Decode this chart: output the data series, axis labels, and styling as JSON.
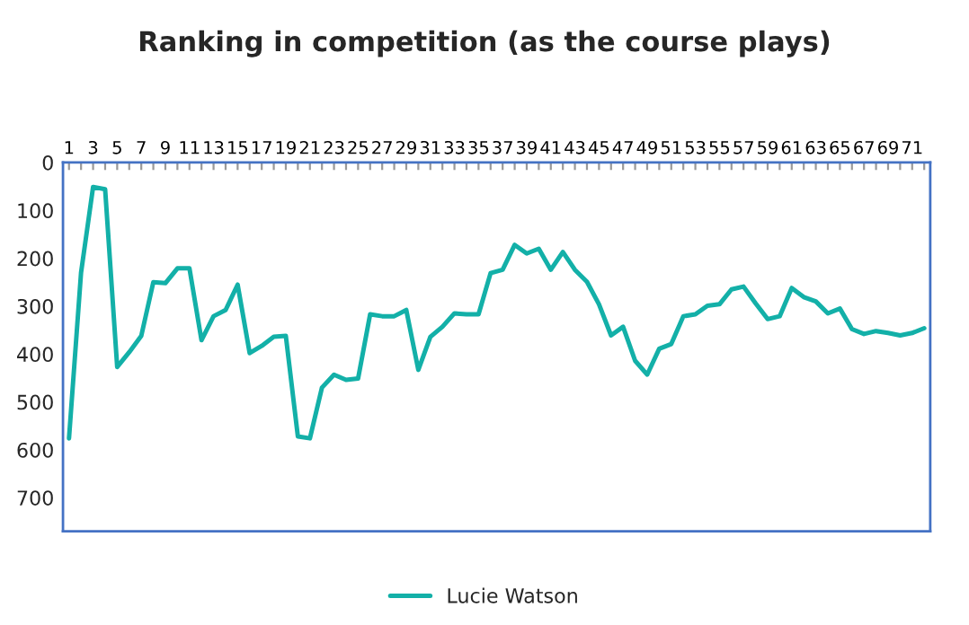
{
  "chart_data": {
    "type": "line",
    "title": "Ranking in competition (as the course plays)",
    "categories": [
      "1",
      null,
      "3",
      null,
      "5",
      null,
      "7",
      null,
      "9",
      null,
      "11",
      null,
      "13",
      null,
      "15",
      null,
      "17",
      null,
      "19",
      null,
      "21",
      null,
      "23",
      null,
      "25",
      null,
      "27",
      null,
      "29",
      null,
      "31",
      null,
      "33",
      null,
      "35",
      null,
      "37",
      null,
      "39",
      null,
      "41",
      null,
      "43",
      null,
      "45",
      null,
      "47",
      null,
      "49",
      null,
      "51",
      null,
      "53",
      null,
      "55",
      null,
      "57",
      null,
      "59",
      null,
      "61",
      null,
      "63",
      null,
      "65",
      null,
      "67",
      null,
      "69",
      null,
      "71",
      null
    ],
    "series": [
      {
        "name": "Lucie Watson",
        "color": "#13b0a8",
        "values": [
          576,
          230,
          51,
          56,
          427,
          396,
          362,
          250,
          252,
          221,
          221,
          371,
          321,
          308,
          255,
          398,
          383,
          364,
          362,
          572,
          576,
          470,
          443,
          454,
          451,
          317,
          321,
          321,
          308,
          433,
          364,
          343,
          315,
          317,
          317,
          231,
          224,
          172,
          190,
          180,
          224,
          187,
          224,
          249,
          296,
          361,
          343,
          414,
          443,
          389,
          379,
          321,
          317,
          299,
          296,
          265,
          259,
          294,
          327,
          321,
          262,
          281,
          290,
          315,
          305,
          348,
          358,
          352,
          356,
          361,
          356,
          346
        ]
      }
    ],
    "ylim": [
      770,
      0
    ],
    "yticks": [
      0,
      100,
      200,
      300,
      400,
      500,
      600,
      700
    ],
    "grid": false,
    "legend": "bottom",
    "marker": "none",
    "line_style": "solid"
  }
}
